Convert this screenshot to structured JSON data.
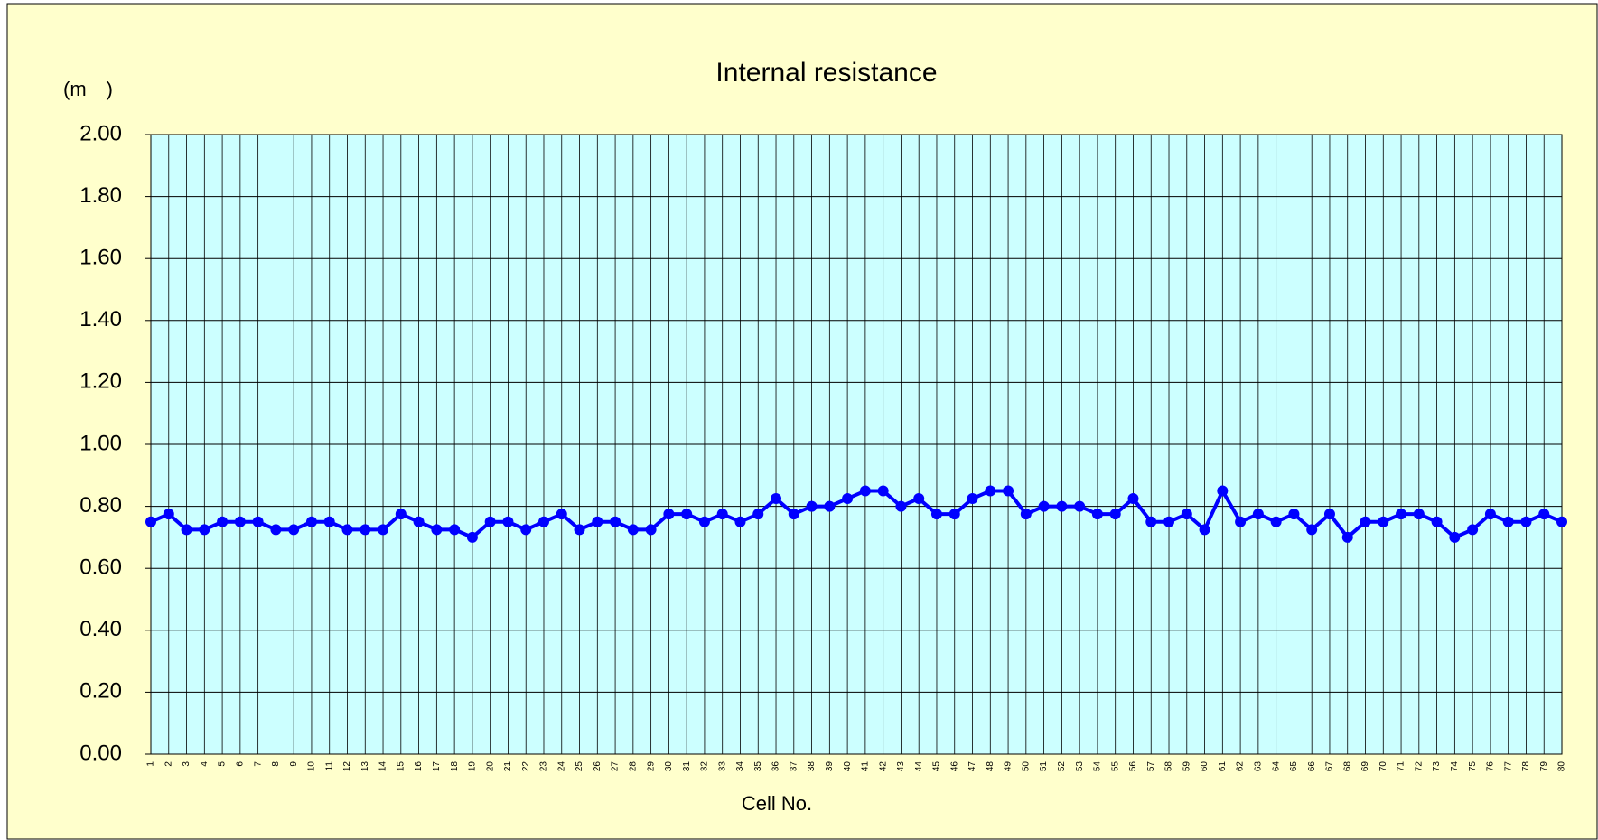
{
  "chart_data": {
    "type": "line",
    "title": "Internal resistance",
    "y_label": "(m　)",
    "x_label": "Cell No.",
    "categories": [
      "1",
      "2",
      "3",
      "4",
      "5",
      "6",
      "7",
      "8",
      "9",
      "10",
      "11",
      "12",
      "13",
      "14",
      "15",
      "16",
      "17",
      "18",
      "19",
      "20",
      "21",
      "22",
      "23",
      "24",
      "25",
      "26",
      "27",
      "28",
      "29",
      "30",
      "31",
      "32",
      "33",
      "34",
      "35",
      "36",
      "37",
      "38",
      "39",
      "40",
      "41",
      "42",
      "43",
      "44",
      "45",
      "46",
      "47",
      "48",
      "49",
      "50",
      "51",
      "52",
      "53",
      "54",
      "55",
      "56",
      "57",
      "58",
      "59",
      "60",
      "61",
      "62",
      "63",
      "64",
      "65",
      "66",
      "67",
      "68",
      "69",
      "70",
      "71",
      "72",
      "73",
      "74",
      "75",
      "76",
      "77",
      "78",
      "79",
      "80"
    ],
    "values": [
      0.75,
      0.775,
      0.725,
      0.725,
      0.75,
      0.75,
      0.75,
      0.725,
      0.725,
      0.75,
      0.75,
      0.725,
      0.725,
      0.725,
      0.775,
      0.75,
      0.725,
      0.725,
      0.7,
      0.75,
      0.75,
      0.725,
      0.75,
      0.775,
      0.725,
      0.75,
      0.75,
      0.725,
      0.725,
      0.775,
      0.775,
      0.75,
      0.775,
      0.75,
      0.775,
      0.825,
      0.775,
      0.8,
      0.8,
      0.825,
      0.85,
      0.85,
      0.8,
      0.825,
      0.775,
      0.775,
      0.825,
      0.85,
      0.85,
      0.775,
      0.8,
      0.8,
      0.8,
      0.775,
      0.775,
      0.825,
      0.75,
      0.75,
      0.775,
      0.725,
      0.85,
      0.75,
      0.775,
      0.75,
      0.775,
      0.725,
      0.775,
      0.7,
      0.75,
      0.75,
      0.775,
      0.775,
      0.75,
      0.7,
      0.725,
      0.775,
      0.75,
      0.75,
      0.775,
      0.75
    ],
    "color": "#0000ff",
    "ylim": [
      0,
      2
    ],
    "yticks": [
      {
        "value": 0,
        "label": "0.00"
      },
      {
        "value": 0.2,
        "label": "0.20"
      },
      {
        "value": 0.4,
        "label": "0.40"
      },
      {
        "value": 0.6,
        "label": "0.60"
      },
      {
        "value": 0.8,
        "label": "0.80"
      },
      {
        "value": 1,
        "label": "1.00"
      },
      {
        "value": 1.2,
        "label": "1.20"
      },
      {
        "value": 1.4,
        "label": "1.40"
      },
      {
        "value": 1.6,
        "label": "1.60"
      },
      {
        "value": 1.8,
        "label": "1.80"
      },
      {
        "value": 2,
        "label": "2.00"
      }
    ],
    "grid": true
  }
}
